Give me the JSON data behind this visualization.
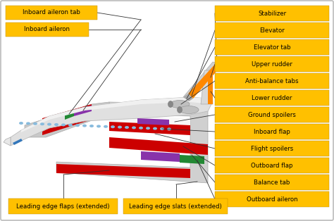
{
  "background_color": "#ffffff",
  "border_color": "#bbbbbb",
  "label_bg_color": "#FFC000",
  "label_text_color": "#000000",
  "label_font_size": 6.2,
  "right_labels": [
    "Stabilizer",
    "Elevator",
    "Elevator tab",
    "Upper rudder",
    "Anti-balance tabs",
    "Lower rudder",
    "Ground spoilers",
    "Inboard flap",
    "Flight spoilers",
    "Outboard flap",
    "Balance tab",
    "Outboard aileron"
  ],
  "left_labels": [
    "Inboard aileron tab",
    "Inboard aileron"
  ],
  "bottom_labels": [
    "Leading edge flaps (extended)",
    "Leading edge slats (extended)"
  ]
}
